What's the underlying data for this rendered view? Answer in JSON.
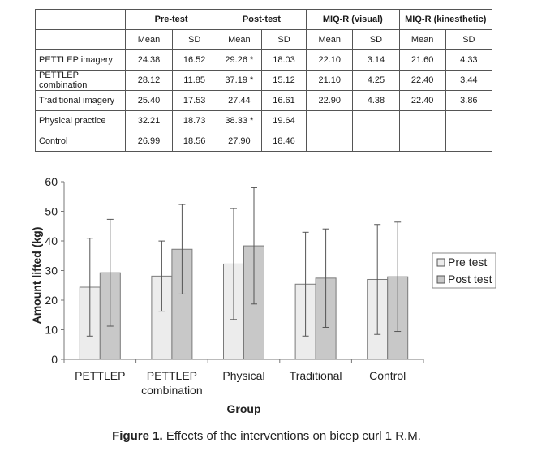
{
  "table": {
    "groups": [
      "Pre-test",
      "Post-test",
      "MIQ-R (visual)",
      "MIQ-R (kinesthetic)"
    ],
    "subheaders": [
      "Mean",
      "SD",
      "Mean",
      "SD",
      "Mean",
      "SD",
      "Mean",
      "SD"
    ],
    "rows": [
      {
        "label": "PETTLEP imagery",
        "cells": [
          "24.38",
          "16.52",
          "29.26 *",
          "18.03",
          "22.10",
          "3.14",
          "21.60",
          "4.33"
        ]
      },
      {
        "label": "PETTLEP combination",
        "cells": [
          "28.12",
          "11.85",
          "37.19 *",
          "15.12",
          "21.10",
          "4.25",
          "22.40",
          "3.44"
        ]
      },
      {
        "label": "Traditional imagery",
        "cells": [
          "25.40",
          "17.53",
          "27.44",
          "16.61",
          "22.90",
          "4.38",
          "22.40",
          "3.86"
        ]
      },
      {
        "label": "Physical practice",
        "cells": [
          "32.21",
          "18.73",
          "38.33 *",
          "19.64",
          "",
          "",
          "",
          ""
        ]
      },
      {
        "label": "Control",
        "cells": [
          "26.99",
          "18.56",
          "27.90",
          "18.46",
          "",
          "",
          "",
          ""
        ]
      }
    ]
  },
  "chart_data": {
    "type": "bar",
    "categories": [
      [
        "PETTLEP"
      ],
      [
        "PETTLEP",
        "combination"
      ],
      [
        "Physical"
      ],
      [
        "Traditional"
      ],
      [
        "Control"
      ]
    ],
    "series": [
      {
        "name": "Pre test",
        "color": "#ececec",
        "values": [
          24.38,
          28.12,
          32.21,
          25.4,
          26.99
        ],
        "errors": [
          16.52,
          11.85,
          18.73,
          17.53,
          18.56
        ]
      },
      {
        "name": "Post test",
        "color": "#c8c8c8",
        "values": [
          29.26,
          37.19,
          38.33,
          27.44,
          27.9
        ],
        "errors": [
          18.03,
          15.12,
          19.64,
          16.61,
          18.46
        ]
      }
    ],
    "xlabel": "Group",
    "ylabel": "Amount lifted (kg)",
    "ylim": [
      0,
      60
    ],
    "yticks": [
      0,
      10,
      20,
      30,
      40,
      50,
      60
    ],
    "grid": false,
    "legend_position": "right"
  },
  "caption": {
    "figure_label": "Figure 1.",
    "text": "Effects of the interventions on bicep curl 1 R.M."
  }
}
